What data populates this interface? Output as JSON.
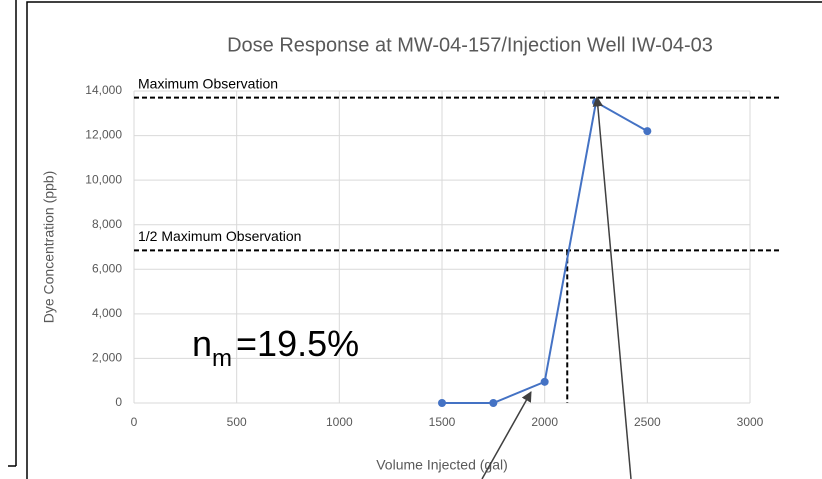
{
  "chart_data": {
    "type": "line",
    "title": "Dose Response at MW-04-157/Injection Well IW-04-03",
    "x_label": "Volume Injected (gal)",
    "y_label": "Dye Concentration (ppb)",
    "x": [
      1500,
      1750,
      2000,
      2250,
      2500
    ],
    "series": [
      {
        "name": "Dye Concentration",
        "color": "#4472c4",
        "values": [
          0,
          0,
          950,
          13500,
          12200
        ]
      }
    ],
    "xlim": [
      0,
      3000
    ],
    "xticks": [
      0,
      500,
      1000,
      1500,
      2000,
      2500,
      3000
    ],
    "ylim": [
      0,
      14000
    ],
    "yticks": [
      0,
      {
        "value": 2000,
        "label": "2,000"
      },
      {
        "value": 4000,
        "label": "4,000"
      },
      {
        "value": 6000,
        "label": "6,000"
      },
      {
        "value": 8000,
        "label": "8,000"
      },
      {
        "value": 10000,
        "label": "10,000"
      },
      {
        "value": 12000,
        "label": "12,000"
      },
      {
        "value": 14000,
        "label": "14,000"
      }
    ],
    "grid": true,
    "reference_lines": [
      {
        "label": "Maximum Observation",
        "y": 13700
      },
      {
        "label": "1/2 Maximum Observation",
        "y": 6850,
        "x": 2110
      }
    ],
    "annotation": {
      "symbol": "n",
      "subscript": "m",
      "text": "=19.5%"
    }
  }
}
